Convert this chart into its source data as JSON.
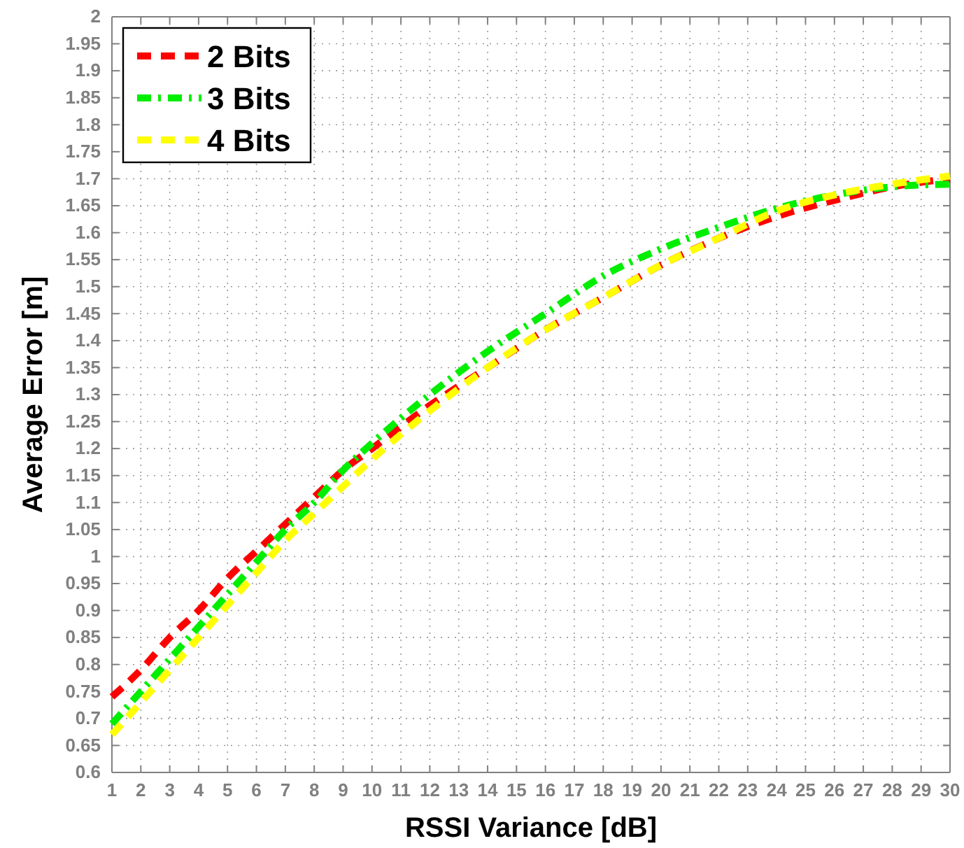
{
  "chart_data": {
    "type": "line",
    "xlabel": "RSSI Variance [dB]",
    "ylabel": "Average Error [m]",
    "xlim": [
      1,
      30
    ],
    "xticks": [
      1,
      2,
      3,
      4,
      5,
      6,
      7,
      8,
      9,
      10,
      11,
      12,
      13,
      14,
      15,
      16,
      17,
      18,
      19,
      20,
      21,
      22,
      23,
      24,
      25,
      26,
      27,
      28,
      29,
      30
    ],
    "ylim": [
      0.6,
      2
    ],
    "yticks": [
      0.6,
      0.65,
      0.7,
      0.75,
      0.8,
      0.85,
      0.9,
      0.95,
      1,
      1.05,
      1.1,
      1.15,
      1.2,
      1.25,
      1.3,
      1.35,
      1.4,
      1.45,
      1.5,
      1.55,
      1.6,
      1.65,
      1.7,
      1.75,
      1.8,
      1.85,
      1.9,
      1.95,
      2
    ],
    "x": [
      1,
      2,
      3,
      4,
      5,
      6,
      7,
      8,
      9,
      10,
      12,
      14,
      16,
      18,
      20,
      22,
      24,
      26,
      28,
      30
    ],
    "grid": true,
    "legend": "top left",
    "marker": "none",
    "series": [
      {
        "name": "2 Bits",
        "color": "#ff0000",
        "line_style": "dashed",
        "values": [
          0.74,
          0.79,
          0.85,
          0.9,
          0.96,
          1.01,
          1.06,
          1.11,
          1.16,
          1.2,
          1.28,
          1.35,
          1.42,
          1.48,
          1.54,
          1.59,
          1.63,
          1.66,
          1.685,
          1.7
        ]
      },
      {
        "name": "3 Bits",
        "color": "#00ee00",
        "line_style": "dashdot",
        "values": [
          0.69,
          0.75,
          0.81,
          0.87,
          0.93,
          0.99,
          1.05,
          1.1,
          1.16,
          1.21,
          1.3,
          1.38,
          1.45,
          1.52,
          1.57,
          1.61,
          1.645,
          1.67,
          1.685,
          1.69
        ]
      },
      {
        "name": "4 Bits",
        "color": "#ffff00",
        "line_style": "dashed",
        "values": [
          0.67,
          0.73,
          0.79,
          0.85,
          0.91,
          0.97,
          1.03,
          1.08,
          1.13,
          1.18,
          1.27,
          1.35,
          1.42,
          1.48,
          1.54,
          1.59,
          1.64,
          1.67,
          1.69,
          1.705
        ]
      }
    ]
  }
}
